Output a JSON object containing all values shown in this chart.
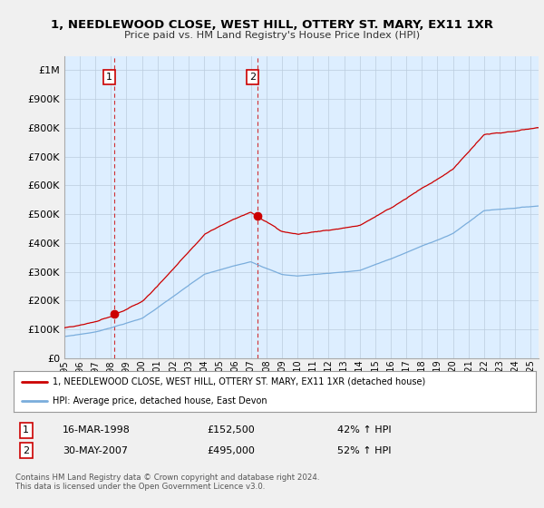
{
  "title": "1, NEEDLEWOOD CLOSE, WEST HILL, OTTERY ST. MARY, EX11 1XR",
  "subtitle": "Price paid vs. HM Land Registry's House Price Index (HPI)",
  "ylim": [
    0,
    1050000
  ],
  "yticks": [
    0,
    100000,
    200000,
    300000,
    400000,
    500000,
    600000,
    700000,
    800000,
    900000,
    1000000
  ],
  "ytick_labels": [
    "£0",
    "£100K",
    "£200K",
    "£300K",
    "£400K",
    "£500K",
    "£600K",
    "£700K",
    "£800K",
    "£900K",
    "£1M"
  ],
  "sale1_year": 1998.21,
  "sale1_price": 152500,
  "sale1_hpi_pct": "42% ↑ HPI",
  "sale2_year": 2007.41,
  "sale2_price": 495000,
  "sale2_hpi_pct": "52% ↑ HPI",
  "legend_line1": "1, NEEDLEWOOD CLOSE, WEST HILL, OTTERY ST. MARY, EX11 1XR (detached house)",
  "legend_line2": "HPI: Average price, detached house, East Devon",
  "footer1": "Contains HM Land Registry data © Crown copyright and database right 2024.",
  "footer2": "This data is licensed under the Open Government Licence v3.0.",
  "price_color": "#cc0000",
  "hpi_color": "#7aaddc",
  "bg_color": "#f0f0f0",
  "plot_bg_color": "#ddeeff",
  "grid_color": "#bbccdd",
  "xlim_start": 1995.0,
  "xlim_end": 2025.5
}
